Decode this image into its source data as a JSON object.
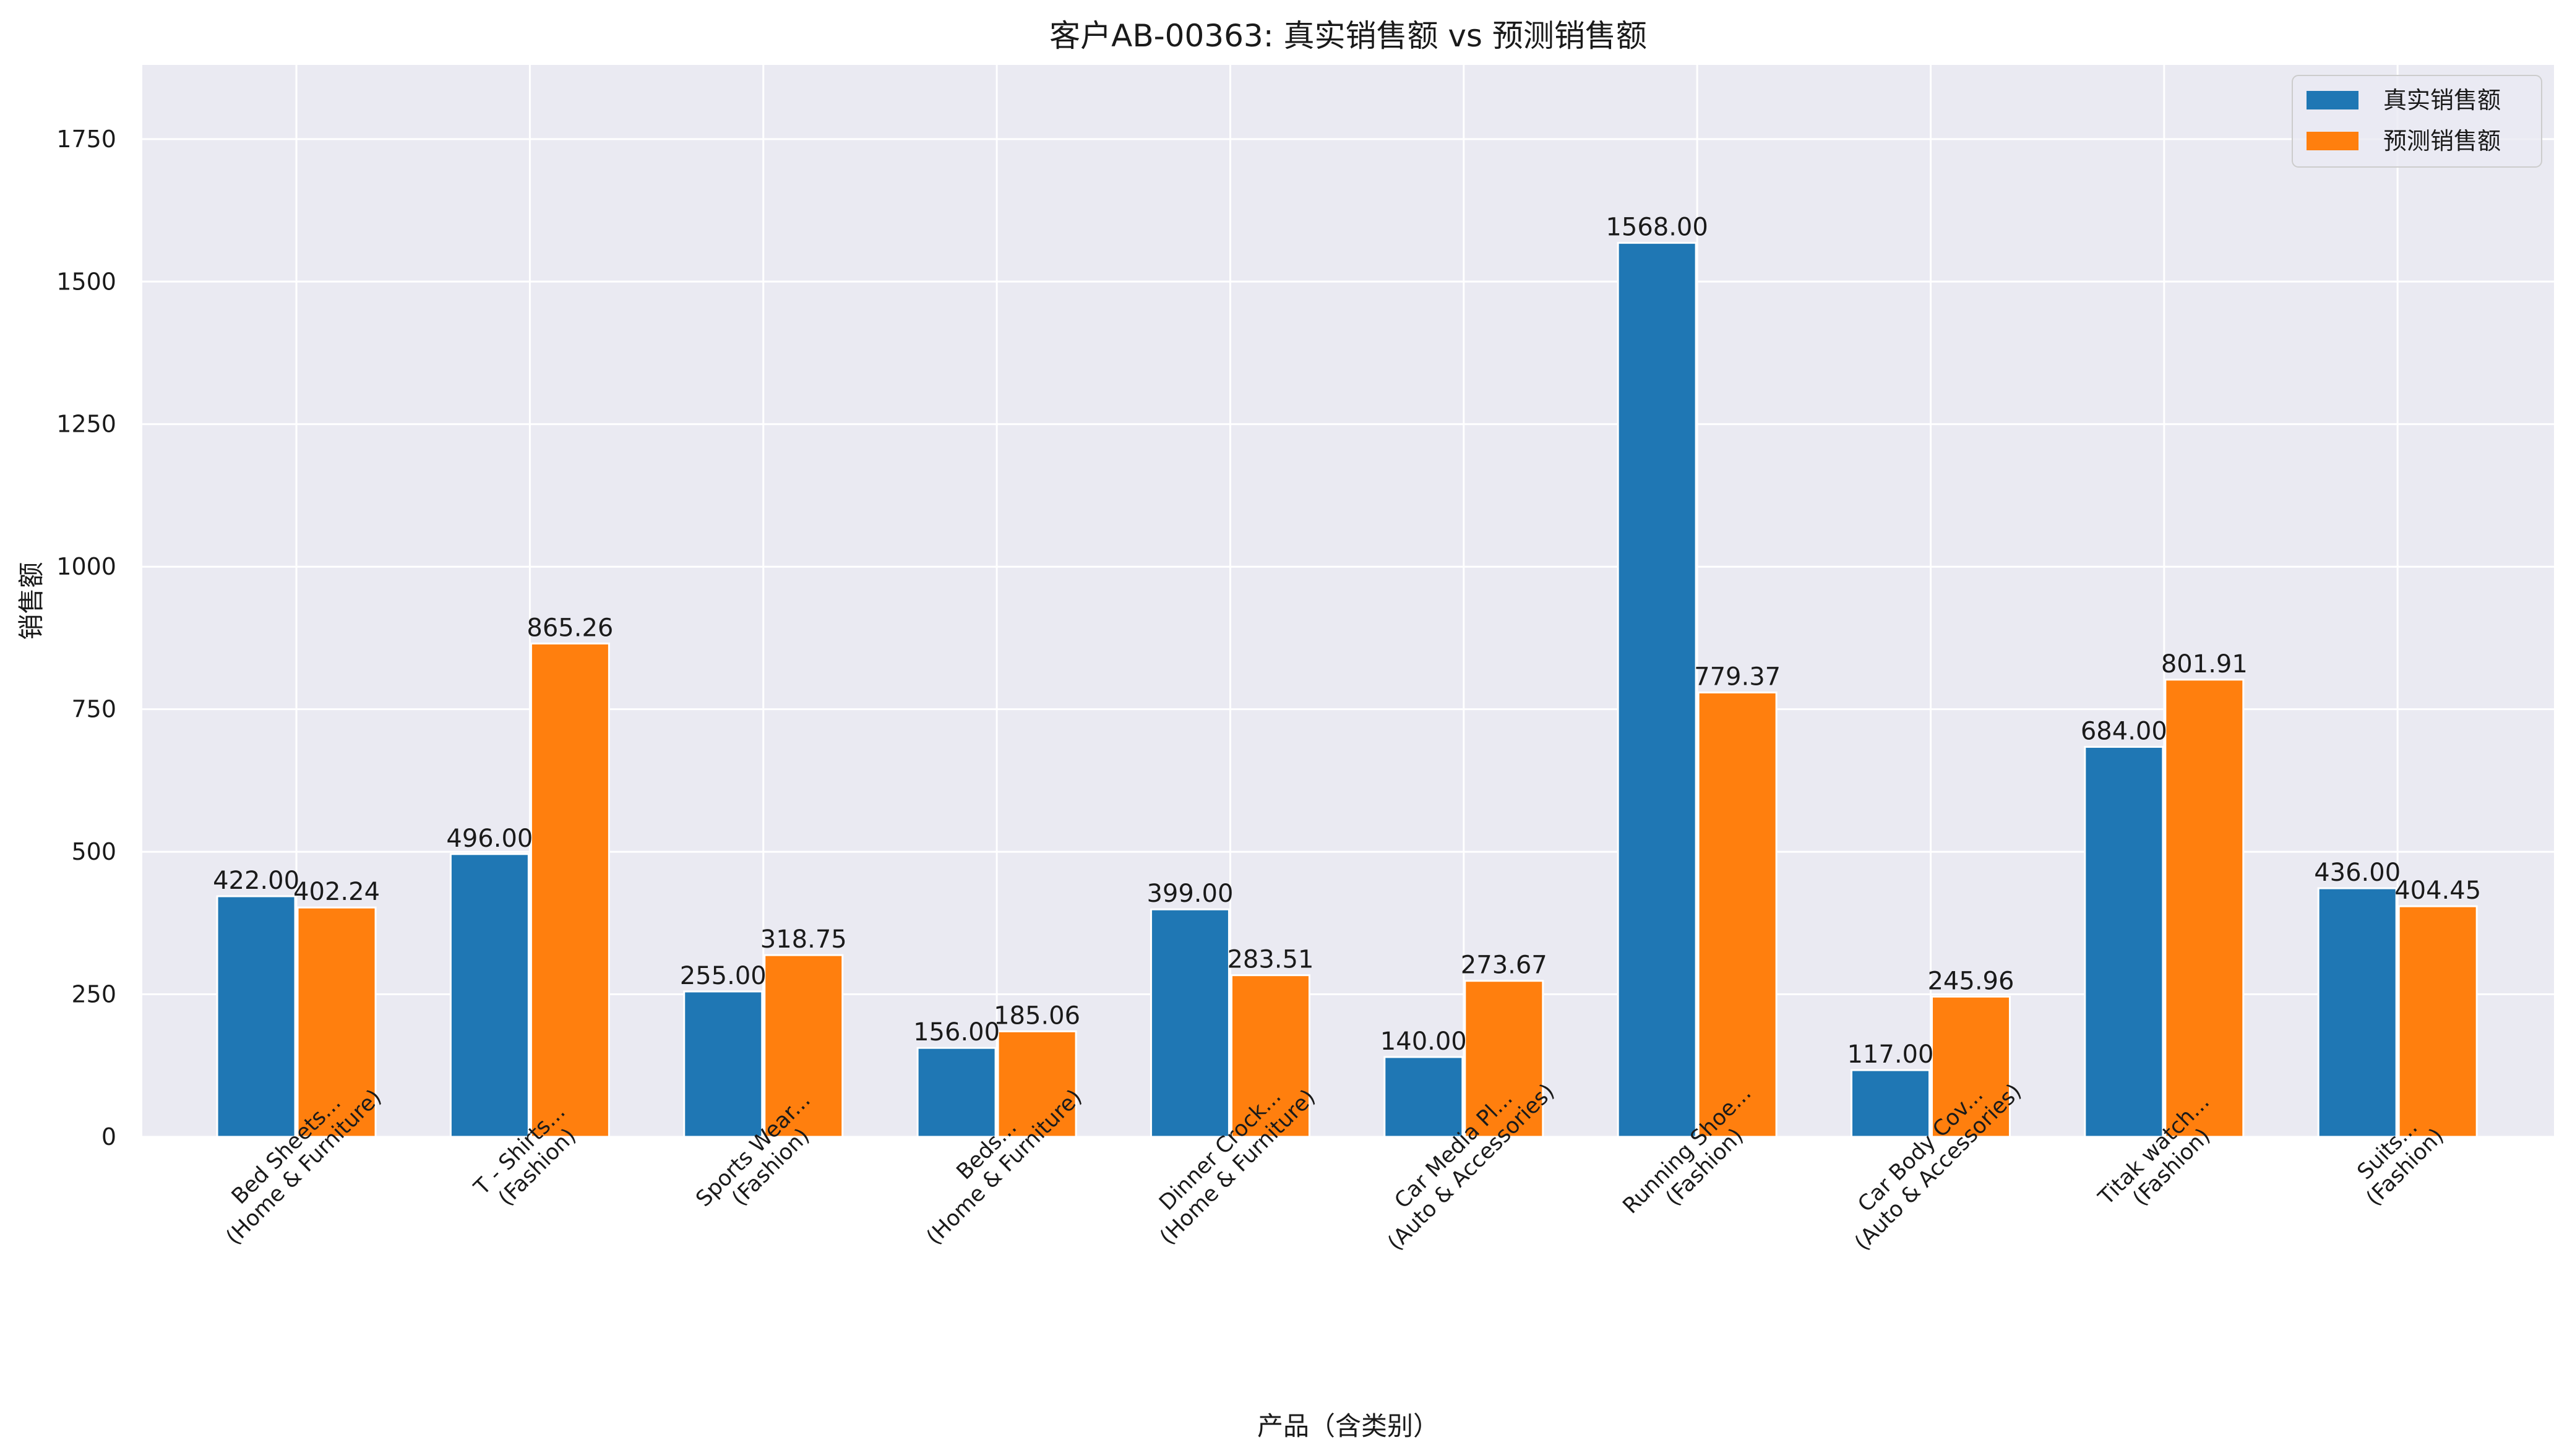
{
  "chart_data": {
    "type": "bar",
    "title": "客户AB-00363: 真实销售额 vs 预测销售额",
    "xlabel": "产品（含类别）",
    "ylabel": "销售额",
    "ylim": [
      0,
      1880
    ],
    "yticks": [
      0,
      250,
      500,
      750,
      1000,
      1250,
      1500,
      1750
    ],
    "grid": true,
    "legend_position": "top-right",
    "categories": [
      [
        "Bed Sheets...",
        "(Home & Furniture)"
      ],
      [
        "T - Shirts...",
        "(Fashion)"
      ],
      [
        "Sports Wear...",
        "(Fashion)"
      ],
      [
        "Beds...",
        "(Home & Furniture)"
      ],
      [
        "Dinner Crock...",
        "(Home & Furniture)"
      ],
      [
        "Car Media Pl...",
        "(Auto & Accessories)"
      ],
      [
        "Running Shoe...",
        "(Fashion)"
      ],
      [
        "Car Body Cov...",
        "(Auto & Accessories)"
      ],
      [
        "Titak watch...",
        "(Fashion)"
      ],
      [
        "Suits...",
        "(Fashion)"
      ]
    ],
    "series": [
      {
        "name": "真实销售额",
        "color": "#1f77b4",
        "values": [
          422.0,
          496.0,
          255.0,
          156.0,
          399.0,
          140.0,
          1568.0,
          117.0,
          684.0,
          436.0
        ],
        "labels": [
          "422.00",
          "496.00",
          "255.00",
          "156.00",
          "399.00",
          "140.00",
          "1568.00",
          "117.00",
          "684.00",
          "436.00"
        ]
      },
      {
        "name": "预测销售额",
        "color": "#ff7f0e",
        "values": [
          402.24,
          865.26,
          318.75,
          185.06,
          283.51,
          273.67,
          779.37,
          245.96,
          801.91,
          404.45
        ],
        "labels": [
          "402.24",
          "865.26",
          "318.75",
          "185.06",
          "283.51",
          "273.67",
          "779.37",
          "245.96",
          "801.91",
          "404.45"
        ]
      }
    ],
    "colors": {
      "plot_background": "#eaeaf2",
      "grid": "#ffffff"
    }
  }
}
